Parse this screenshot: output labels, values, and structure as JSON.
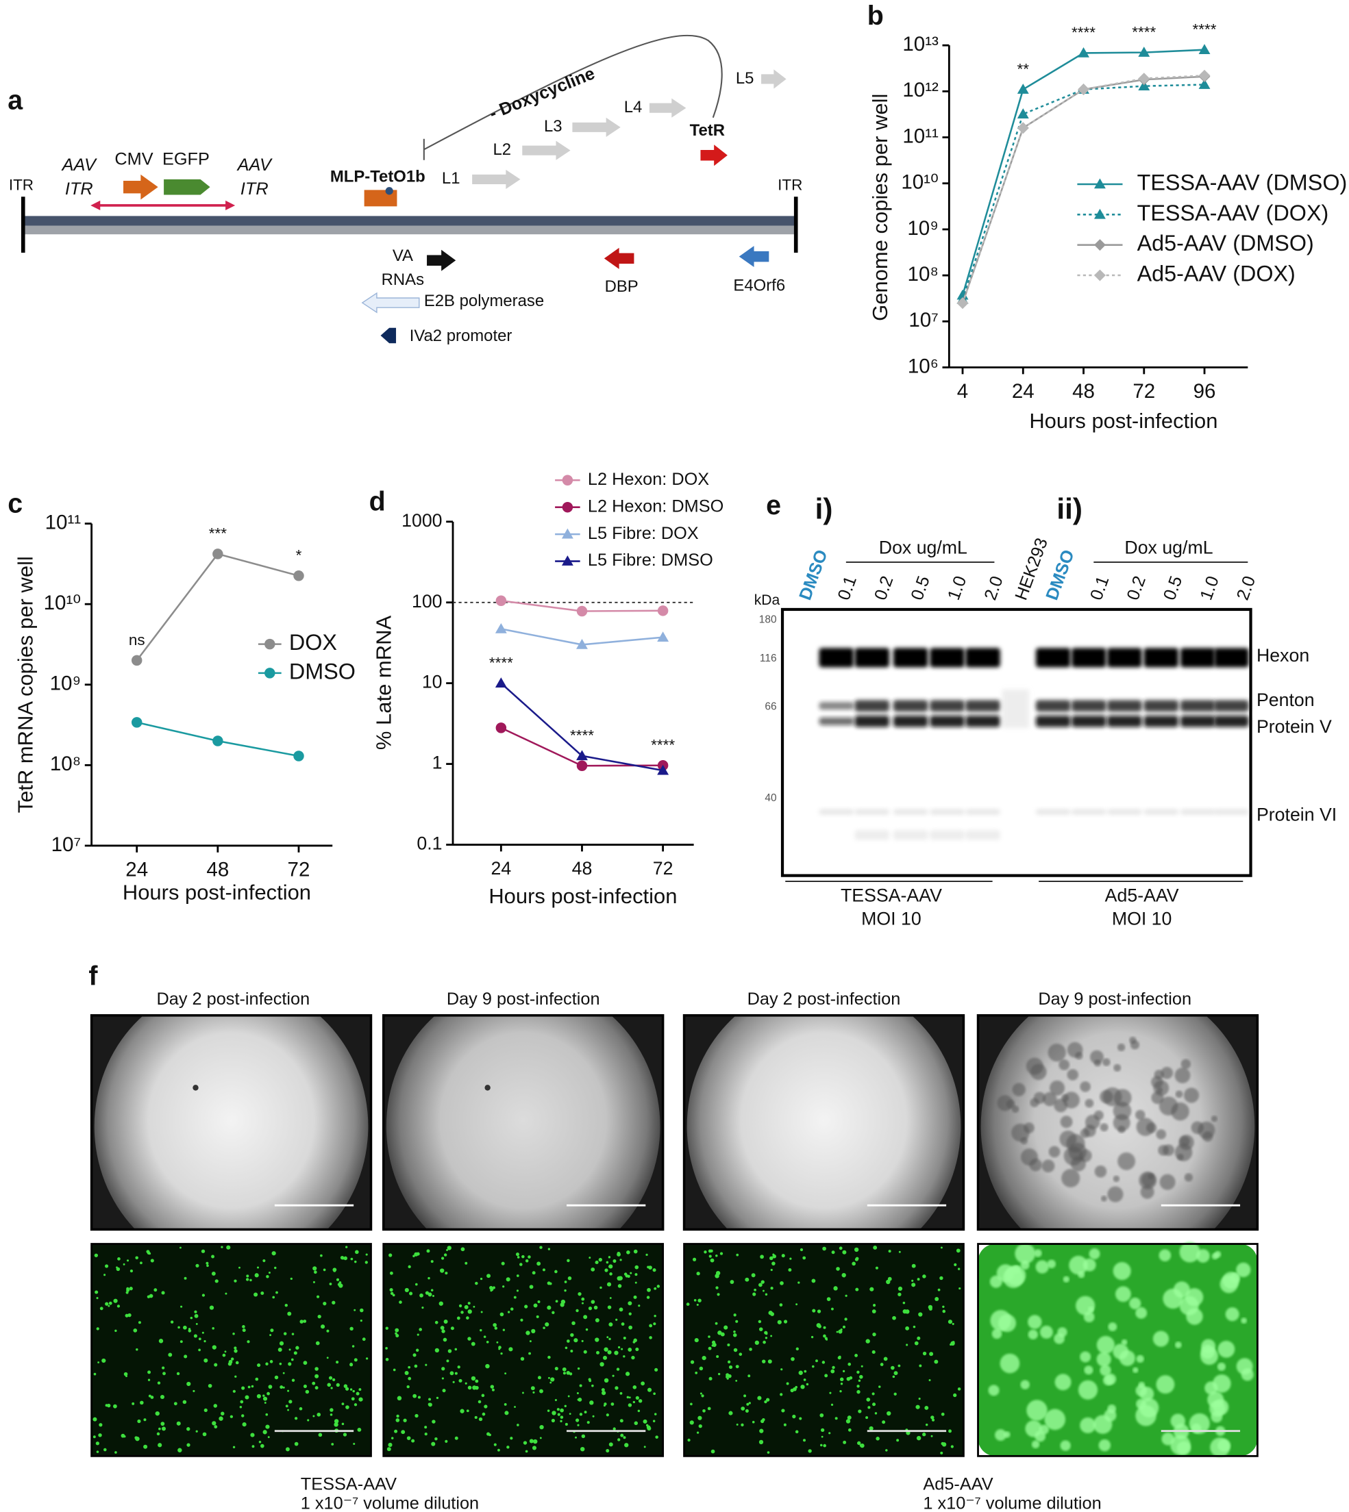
{
  "panel_labels": {
    "a": "a",
    "b": "b",
    "c": "c",
    "d": "d",
    "e": "e",
    "f": "f"
  },
  "diagram_a": {
    "itr_left": "ITR",
    "itr_right": "ITR",
    "aav_itr_left": [
      "AAV",
      "ITR"
    ],
    "aav_itr_right": [
      "AAV",
      "ITR"
    ],
    "cmv": "CMV",
    "egfp": "EGFP",
    "mlp": "MLP-TetO1b",
    "doxycycline": "- Doxycycline",
    "late_units": [
      "L1",
      "L2",
      "L3",
      "L4",
      "L5"
    ],
    "tetr": "TetR",
    "va_rnas": [
      "VA",
      "RNAs"
    ],
    "dbp": "DBP",
    "e4orf6": "E4Orf6",
    "e2b": "E2B polymerase",
    "iva2": "IVa2 promoter"
  },
  "chart_data": [
    {
      "type": "line",
      "y_label": "Genome copies per well",
      "x_label": "Hours post-infection",
      "categories": [
        "4",
        "24",
        "48",
        "72",
        "96"
      ],
      "y_log_scale": true,
      "ylim": [
        1000000.0,
        10000000000000.0
      ],
      "yticks": [
        {
          "value": 1000000.0,
          "label": "10⁶"
        },
        {
          "value": 10000000.0,
          "label": "10⁷"
        },
        {
          "value": 100000000.0,
          "label": "10⁸"
        },
        {
          "value": 1000000000.0,
          "label": "10⁹"
        },
        {
          "value": 10000000000.0,
          "label": "10¹⁰"
        },
        {
          "value": 100000000000.0,
          "label": "10¹¹"
        },
        {
          "value": 1000000000000.0,
          "label": "10¹²"
        },
        {
          "value": 10000000000000.0,
          "label": "10¹³"
        }
      ],
      "series": [
        {
          "name": "TESSA-AAV (DMSO)",
          "color": "#1e8c99",
          "marker": "triangle",
          "line_style": "solid",
          "values": [
            37000000.0,
            1100000000000.0,
            6800000000000.0,
            7000000000000.0,
            8000000000000.0
          ]
        },
        {
          "name": "TESSA-AAV (DOX)",
          "color": "#1e8c99",
          "marker": "triangle",
          "line_style": "dashed",
          "values": [
            30000000.0,
            320000000000.0,
            1100000000000.0,
            1300000000000.0,
            1400000000000.0
          ]
        },
        {
          "name": "Ad5-AAV (DMSO)",
          "color": "#9a9a9a",
          "marker": "diamond",
          "line_style": "solid",
          "values": [
            25000000.0,
            160000000000.0,
            1100000000000.0,
            1800000000000.0,
            2100000000000.0
          ]
        },
        {
          "name": "Ad5-AAV (DOX)",
          "color": "#b8b8b8",
          "marker": "diamond",
          "line_style": "dashed",
          "values": [
            25000000.0,
            160000000000.0,
            1100000000000.0,
            1900000000000.0,
            2200000000000.0
          ]
        }
      ],
      "annotations": [
        {
          "category": "24",
          "text": "**"
        },
        {
          "category": "48",
          "text": "****"
        },
        {
          "category": "72",
          "text": "****"
        },
        {
          "category": "96",
          "text": "****"
        }
      ]
    },
    {
      "type": "line",
      "y_label": "TetR mRNA copies per well",
      "x_label": "Hours post-infection",
      "categories": [
        "24",
        "48",
        "72"
      ],
      "y_log_scale": true,
      "ylim": [
        10000000.0,
        100000000000.0
      ],
      "yticks": [
        {
          "value": 10000000.0,
          "label": "10⁷"
        },
        {
          "value": 100000000.0,
          "label": "10⁸"
        },
        {
          "value": 1000000000.0,
          "label": "10⁹"
        },
        {
          "value": 10000000000.0,
          "label": "10¹⁰"
        },
        {
          "value": 100000000000.0,
          "label": "10¹¹"
        }
      ],
      "series": [
        {
          "name": "DOX",
          "color": "#8c8c8c",
          "marker": "circle",
          "line_style": "solid",
          "values": [
            2000000000.0,
            42000000000.0,
            22500000000.0
          ]
        },
        {
          "name": "DMSO",
          "color": "#1a9aa0",
          "marker": "circle",
          "line_style": "solid",
          "values": [
            340000000.0,
            200000000.0,
            130000000.0
          ]
        }
      ],
      "annotations": [
        {
          "category": "24",
          "text": "ns"
        },
        {
          "category": "48",
          "text": "***"
        },
        {
          "category": "72",
          "text": "*"
        }
      ]
    },
    {
      "type": "line",
      "y_label": "% Late mRNA",
      "x_label": "Hours post-infection",
      "categories": [
        "24",
        "48",
        "72"
      ],
      "y_log_scale": true,
      "ylim": [
        0.1,
        1000
      ],
      "yticks": [
        0.1,
        1,
        10,
        100,
        1000
      ],
      "reference_line": 100,
      "series": [
        {
          "name": "L2 Hexon: DOX",
          "color": "#d48aa8",
          "marker": "circle",
          "line_style": "solid",
          "values": [
            105,
            78,
            79
          ]
        },
        {
          "name": "L2 Hexon: DMSO",
          "color": "#a0185a",
          "marker": "circle",
          "line_style": "solid",
          "values": [
            2.8,
            0.95,
            0.96
          ]
        },
        {
          "name": "L5 Fibre: DOX",
          "color": "#8fb0dc",
          "marker": "triangle",
          "line_style": "solid",
          "values": [
            47,
            30,
            37
          ]
        },
        {
          "name": "L5 Fibre: DMSO",
          "color": "#1a1a8a",
          "marker": "triangle",
          "line_style": "solid",
          "values": [
            10,
            1.26,
            0.83
          ]
        }
      ],
      "annotations": [
        {
          "category": "24",
          "text": "****"
        },
        {
          "category": "48",
          "text": "****"
        },
        {
          "category": "72",
          "text": "****"
        }
      ]
    }
  ],
  "gel_e": {
    "groups": [
      "i)",
      "ii)"
    ],
    "dox_label": [
      "Dox ug/mL",
      "Dox ug/mL"
    ],
    "lanes_i": [
      "DMSO",
      "0.1",
      "0.2",
      "0.5",
      "1.0",
      "2.0"
    ],
    "lane_hek": "HEK293",
    "lanes_ii": [
      "DMSO",
      "0.1",
      "0.2",
      "0.5",
      "1.0",
      "2.0"
    ],
    "kda_label": "kDa",
    "markers": [
      "180",
      "116",
      "66",
      "40"
    ],
    "bands": [
      "Hexon",
      "Penton",
      "Protein V",
      "Protein VI"
    ],
    "captions": [
      [
        "TESSA-AAV",
        "MOI 10"
      ],
      [
        "Ad5-AAV",
        "MOI 10"
      ]
    ]
  },
  "images_f": {
    "titles": [
      "Day 2 post-infection",
      "Day 9 post-infection",
      "Day 2 post-infection",
      "Day 9 post-infection"
    ],
    "captions": [
      [
        "TESSA-AAV",
        "1 x10⁻⁷ volume dilution"
      ],
      [
        "Ad5-AAV",
        "1 x10⁻⁷ volume dilution"
      ]
    ]
  }
}
